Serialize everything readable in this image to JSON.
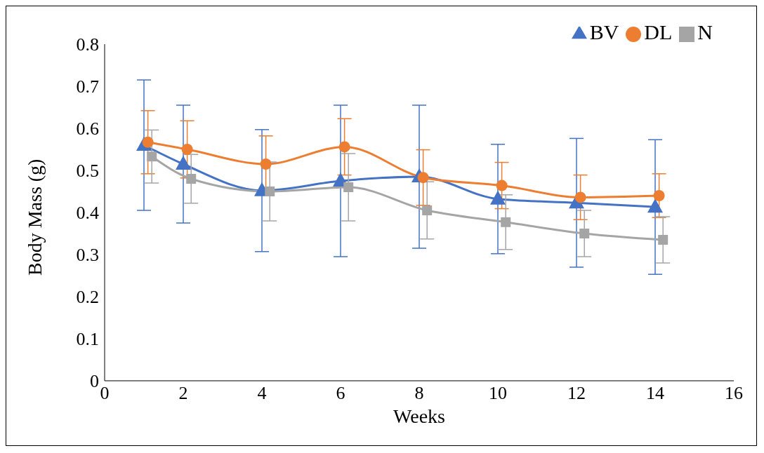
{
  "chart_data": {
    "type": "line",
    "xlabel": "Weeks",
    "ylabel": "Body Mass (g)",
    "xlim": [
      0,
      16
    ],
    "xticks": [
      0,
      2,
      4,
      6,
      8,
      10,
      12,
      14,
      16
    ],
    "ylim": [
      0,
      0.8
    ],
    "yticks": [
      0,
      0.1,
      0.2,
      0.3,
      0.4,
      0.5,
      0.6,
      0.7,
      0.8
    ],
    "grid": false,
    "legend": "top right",
    "line_style": "solid",
    "series": [
      {
        "name": "BV",
        "color": "#4472c4",
        "marker": "triangle",
        "x": [
          1,
          2,
          4,
          6,
          8,
          10,
          12,
          14
        ],
        "values": [
          0.56,
          0.515,
          0.452,
          0.475,
          0.485,
          0.432,
          0.423,
          0.413
        ],
        "errors": [
          0.155,
          0.14,
          0.145,
          0.18,
          0.17,
          0.13,
          0.153,
          0.16
        ]
      },
      {
        "name": "DL",
        "color": "#ed7d31",
        "marker": "circle",
        "x": [
          1.1,
          2.1,
          4.1,
          6.1,
          8.1,
          10.1,
          12.1,
          14.1
        ],
        "values": [
          0.567,
          0.55,
          0.515,
          0.556,
          0.483,
          0.464,
          0.436,
          0.44
        ],
        "errors": [
          0.075,
          0.068,
          0.067,
          0.067,
          0.066,
          0.055,
          0.053,
          0.052
        ]
      },
      {
        "name": "N",
        "color": "#a5a5a5",
        "marker": "square",
        "x": [
          1.2,
          2.2,
          4.2,
          6.2,
          8.2,
          10.2,
          12.2,
          14.2
        ],
        "values": [
          0.533,
          0.48,
          0.45,
          0.46,
          0.405,
          0.377,
          0.35,
          0.335
        ],
        "errors": [
          0.063,
          0.058,
          0.07,
          0.08,
          0.068,
          0.065,
          0.055,
          0.055
        ]
      }
    ]
  }
}
